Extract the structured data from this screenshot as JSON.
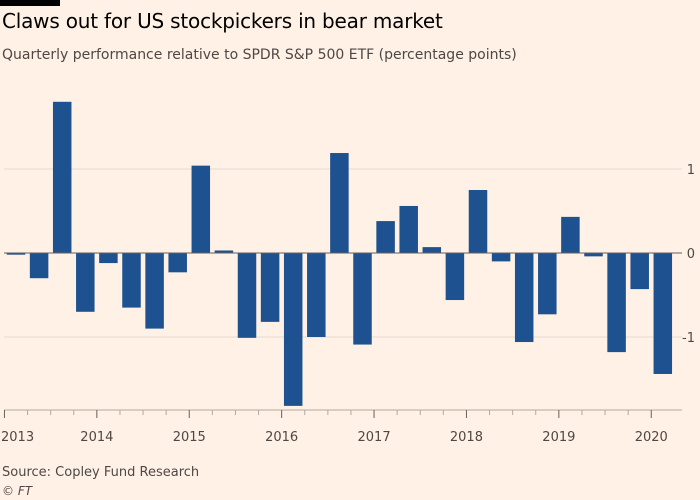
{
  "header": {
    "title": "Claws out for US stockpickers in bear market",
    "subtitle": "Quarterly performance relative to SPDR S&P 500 ETF (percentage points)"
  },
  "footer": {
    "source": "Source: Copley Fund Research",
    "credit": "© FT"
  },
  "colors": {
    "background": "#fff1e5",
    "bar": "#1d5190",
    "grid": "#e6dcd2",
    "zero_line": "#66605c"
  },
  "chart_data": {
    "type": "bar",
    "title": "Claws out for US stockpickers in bear market",
    "subtitle": "Quarterly performance relative to SPDR S&P 500 ETF (percentage points)",
    "xlabel": "",
    "ylabel": "percentage points",
    "ylim": [
      -1.85,
      1.9
    ],
    "y_ticks": [
      1,
      0,
      -1
    ],
    "y_tick_labels": [
      "1",
      "0",
      "-1"
    ],
    "x_ticks": [
      "2013",
      "2014",
      "2015",
      "2016",
      "2017",
      "2018",
      "2019",
      "2020"
    ],
    "x_tick_quarter_index": [
      0,
      4,
      8,
      12,
      16,
      20,
      24,
      28
    ],
    "categories": [
      "2013 Q1",
      "2013 Q2",
      "2013 Q3",
      "2013 Q4",
      "2014 Q1",
      "2014 Q2",
      "2014 Q3",
      "2014 Q4",
      "2015 Q1",
      "2015 Q2",
      "2015 Q3",
      "2015 Q4",
      "2016 Q1",
      "2016 Q2",
      "2016 Q3",
      "2016 Q4",
      "2017 Q1",
      "2017 Q2",
      "2017 Q3",
      "2017 Q4",
      "2018 Q1",
      "2018 Q2",
      "2018 Q3",
      "2018 Q4",
      "2019 Q1",
      "2019 Q2",
      "2019 Q3",
      "2019 Q4",
      "2020 Q1"
    ],
    "values": [
      -0.02,
      -0.3,
      1.8,
      -0.7,
      -0.12,
      -0.65,
      -0.9,
      -0.23,
      1.04,
      0.03,
      -1.01,
      -0.82,
      -1.82,
      -1.0,
      1.19,
      -1.09,
      0.38,
      0.56,
      0.07,
      -0.56,
      0.75,
      -0.1,
      -1.06,
      -0.73,
      0.43,
      -0.04,
      -1.18,
      -0.43,
      -1.44
    ],
    "grid": true,
    "legend": "none"
  }
}
